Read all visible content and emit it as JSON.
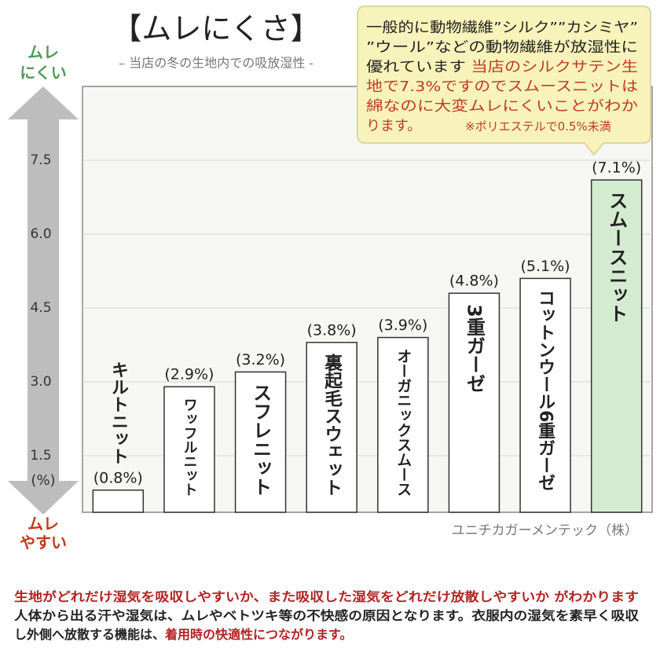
{
  "chart_data": {
    "type": "bar",
    "title": "【ムレにくさ】",
    "subtitle": "– 当店の冬の生地内での吸放湿性 -",
    "categories": [
      "キルトニット",
      "ワッフルニット",
      "スフレニット",
      "裏起毛スウェット",
      "オーガニックスムース",
      "3重ガーゼ",
      "コットンウール6重ガーゼ",
      "スムースニット"
    ],
    "values": [
      0.8,
      2.9,
      3.2,
      3.8,
      3.9,
      4.8,
      5.1,
      7.1
    ],
    "value_labels": [
      "(0.8%)",
      "(2.9%)",
      "(3.2%)",
      "(3.8%)",
      "(3.9%)",
      "(4.8%)",
      "(5.1%)",
      "(7.1%)"
    ],
    "colors": [
      "#ffffff",
      "#ffffff",
      "#ffffff",
      "#ffffff",
      "#ffffff",
      "#ffffff",
      "#ffffff",
      "#d3ebcf"
    ],
    "ylabel": "(%)",
    "ylim": [
      0.35,
      9
    ],
    "yticks": [
      1.5,
      {
        "value": 3,
        "label": "3.0"
      },
      4.5,
      {
        "value": 6,
        "label": "6.0"
      },
      7.5
    ],
    "grid": true
  },
  "scale_labels": {
    "top": [
      "ムレ",
      "にくい"
    ],
    "bottom": [
      "ムレ",
      "やすい"
    ]
  },
  "callout": {
    "lines": [
      [
        {
          "text": "一般的に動物繊維”シルク””カシミヤ”",
          "color": "#222222"
        }
      ],
      [
        {
          "text": "”ウール”などの動物繊維が放湿性に",
          "color": "#222222"
        }
      ],
      [
        {
          "text": "優れています ",
          "color": "#222222"
        },
        {
          "text": "当店のシルクサテン生",
          "color": "#c0392b"
        }
      ],
      [
        {
          "text": "地で7.3%ですのでスムースニットは",
          "color": "#c0392b"
        }
      ],
      [
        {
          "text": "綿なのに大変ムレにくいことがわか",
          "color": "#c0392b"
        }
      ],
      [
        {
          "text": "ります。",
          "color": "#c0392b"
        },
        {
          "text": "※ポリエステルで0.5%未満",
          "color": "#c0392b"
        }
      ]
    ]
  },
  "credit": "ユニチカガーメンテック（株）",
  "footer": {
    "lines": [
      [
        {
          "text": "生地がどれだけ湿気を吸収しやすいか、また吸収した湿気をどれだけ放散しやすいか がわかります",
          "color": "#b22222"
        }
      ],
      [
        {
          "text": "人体から出る汗や湿気は、ムレやベトツキ等の不快感の原因となります。衣服内の湿気を素早く吸収",
          "color": "#222222"
        }
      ],
      [
        {
          "text": "し外側へ放散する機能は、",
          "color": "#222222"
        },
        {
          "text": "着用時の快適性につながります。",
          "color": "#b22222"
        }
      ]
    ]
  }
}
